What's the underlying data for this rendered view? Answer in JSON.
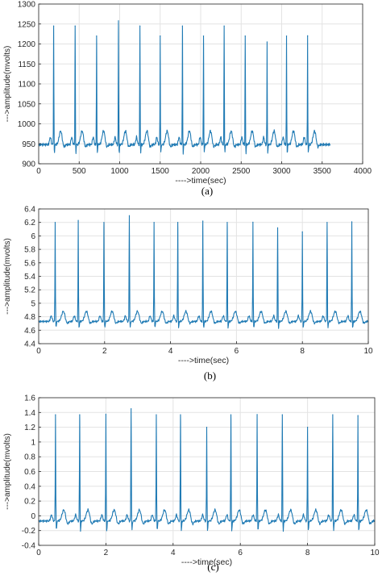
{
  "chart_data": [
    {
      "type": "line",
      "panel_label": "(a)",
      "xlabel": "---->time(sec)",
      "ylabel": "--->amplitude(mvolts)",
      "xlim": [
        0,
        4000
      ],
      "ylim": [
        900,
        1300
      ],
      "xticks": [
        0,
        500,
        1000,
        1500,
        2000,
        2500,
        3000,
        3500,
        4000
      ],
      "yticks": [
        900,
        950,
        1000,
        1050,
        1100,
        1150,
        1200,
        1250,
        1300
      ],
      "grid": true,
      "line_color": "#1f7ab4",
      "x_end": 3600,
      "baseline": 948,
      "t_height": 982,
      "q_min": 925,
      "peaks_x": [
        185,
        450,
        715,
        985,
        1250,
        1500,
        1775,
        2035,
        2290,
        2550,
        2820,
        3060,
        3320
      ],
      "peaks_y": [
        1245,
        1245,
        1220,
        1258,
        1245,
        1220,
        1245,
        1220,
        1245,
        1220,
        1205,
        1220,
        1220
      ]
    },
    {
      "type": "line",
      "panel_label": "(b)",
      "xlabel": "---->time(sec)",
      "ylabel": "--->amplitude(mvolts)",
      "xlim": [
        0,
        10
      ],
      "ylim": [
        4.4,
        6.4
      ],
      "xticks": [
        0,
        2,
        4,
        6,
        8,
        10
      ],
      "yticks": [
        4.4,
        4.6,
        4.8,
        5.0,
        5.2,
        5.4,
        5.6,
        5.8,
        6.0,
        6.2,
        6.4
      ],
      "ytick_labels": [
        "4.4",
        "4.6",
        "4.8",
        "5",
        "5.2",
        "5.4",
        "5.6",
        "5.8",
        "6",
        "6.2",
        "6.4"
      ],
      "grid": true,
      "line_color": "#1f7ab4",
      "x_end": 10,
      "baseline": 4.73,
      "t_height": 4.88,
      "q_min": 4.62,
      "peaks_x": [
        0.5,
        1.2,
        1.98,
        2.75,
        3.5,
        4.22,
        4.98,
        5.72,
        6.5,
        7.25,
        8.0,
        8.75,
        9.5
      ],
      "peaks_y": [
        6.2,
        6.22,
        6.2,
        6.3,
        6.2,
        6.2,
        6.22,
        6.2,
        6.2,
        6.12,
        6.06,
        6.2,
        6.2
      ]
    },
    {
      "type": "line",
      "panel_label": "(c)",
      "xlabel": "---->time(sec)",
      "ylabel": "--->amplitude(mvolts)",
      "xlim": [
        0,
        10
      ],
      "ylim": [
        -0.4,
        1.6
      ],
      "xticks": [
        0,
        2,
        4,
        6,
        8,
        10
      ],
      "yticks": [
        -0.4,
        -0.2,
        0,
        0.2,
        0.4,
        0.6,
        0.8,
        1.0,
        1.2,
        1.4,
        1.6
      ],
      "ytick_labels": [
        "-0.4",
        "-0.2",
        "0",
        "0.2",
        "0.4",
        "0.6",
        "0.8",
        "1",
        "1.2",
        "1.4",
        "1.6"
      ],
      "grid": true,
      "line_color": "#1f7ab4",
      "x_end": 10,
      "baseline": -0.07,
      "t_height": 0.08,
      "q_min": -0.22,
      "peaks_x": [
        0.5,
        1.22,
        2.0,
        2.75,
        3.5,
        4.22,
        5.0,
        5.72,
        6.5,
        7.25,
        8.0,
        8.75,
        9.5
      ],
      "peaks_y": [
        1.37,
        1.37,
        1.37,
        1.45,
        1.37,
        1.37,
        1.2,
        1.37,
        1.37,
        1.37,
        1.2,
        1.37,
        1.35
      ]
    }
  ]
}
